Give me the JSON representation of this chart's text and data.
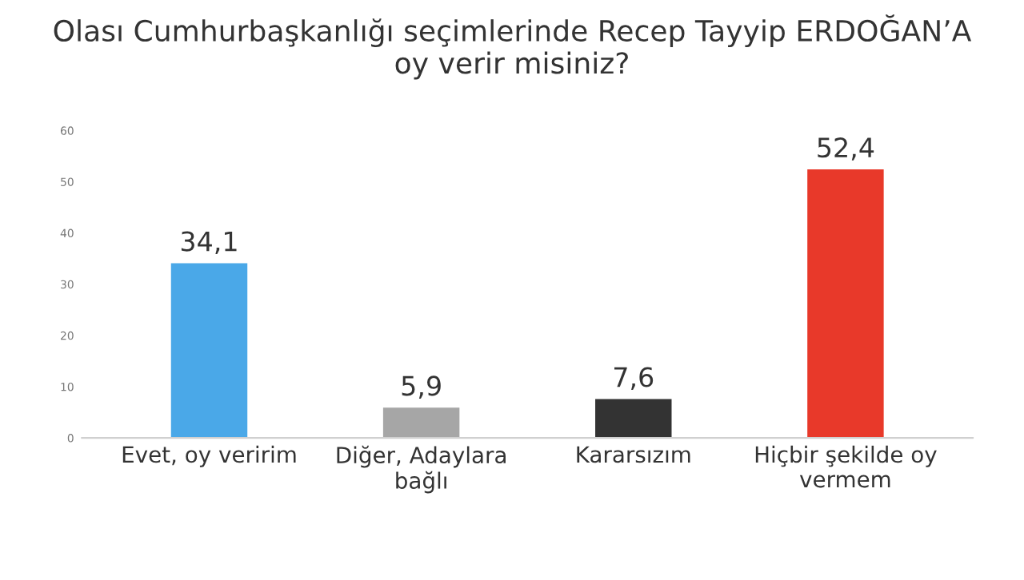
{
  "chart_data": {
    "type": "bar",
    "title": "Olası Cumhurbaşkanlığı seçimlerinde Recep Tayyip ERDOĞAN’A\noy verir misiniz?",
    "categories": [
      "Evet, oy veririm",
      "Diğer, Adaylara\nbağlı",
      "Kararsızım",
      "Hiçbir şekilde oy\nvermem"
    ],
    "values": [
      34.1,
      5.9,
      7.6,
      52.4
    ],
    "colors": [
      "#4aa8e8",
      "#a6a6a6",
      "#333333",
      "#e8392a"
    ],
    "value_labels": [
      "34,1",
      "5,9",
      "7,6",
      "52,4"
    ],
    "ylim": [
      0,
      60
    ],
    "yticks": [
      0,
      10,
      20,
      30,
      40,
      50,
      60
    ],
    "grid": false,
    "legend": false
  }
}
